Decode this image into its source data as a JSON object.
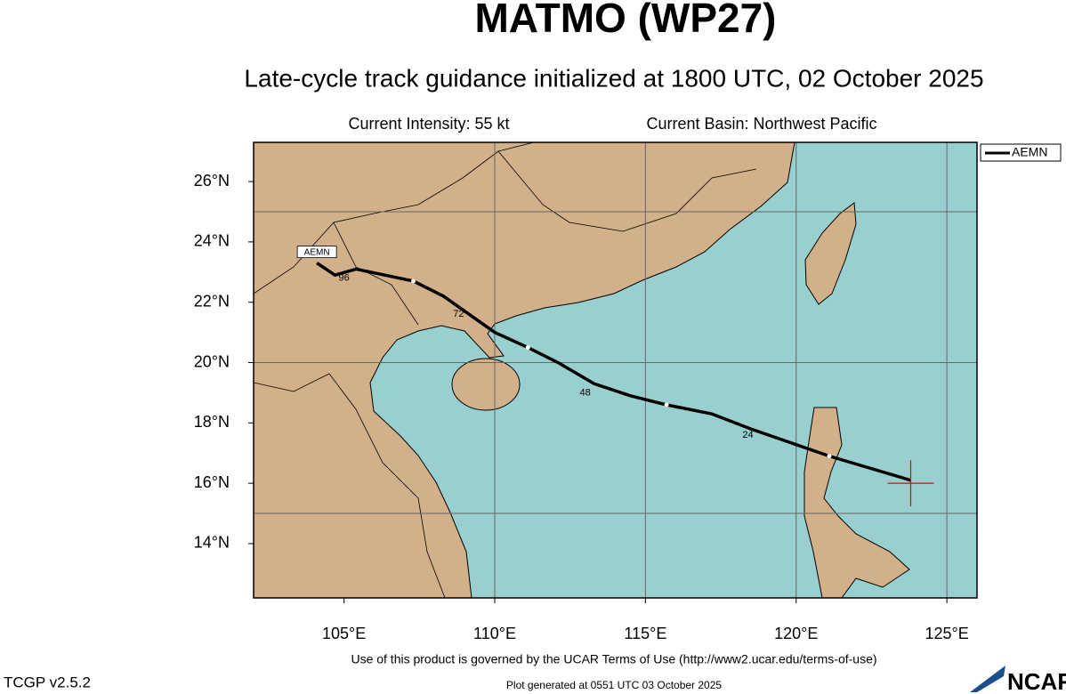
{
  "chart_data": {
    "type": "track-map",
    "title": "MATMO (WP27)",
    "subtitle": "Late-cycle track guidance initialized at 1800 UTC, 02 October 2025",
    "current_intensity": "Current Intensity: 55 kt",
    "current_basin": "Current Basin: Northwest Pacific",
    "xlim": [
      102,
      126
    ],
    "ylim": [
      12.2,
      27.3
    ],
    "xticks": [
      {
        "value": 105,
        "label": "105°E"
      },
      {
        "value": 110,
        "label": "110°E"
      },
      {
        "value": 115,
        "label": "115°E"
      },
      {
        "value": 120,
        "label": "120°E"
      },
      {
        "value": 125,
        "label": "125°E"
      }
    ],
    "yticks": [
      {
        "value": 14,
        "label": "14°N"
      },
      {
        "value": 16,
        "label": "16°N"
      },
      {
        "value": 18,
        "label": "18°N"
      },
      {
        "value": 20,
        "label": "20°N"
      },
      {
        "value": 22,
        "label": "22°N"
      },
      {
        "value": 24,
        "label": "24°N"
      },
      {
        "value": 26,
        "label": "26°N"
      }
    ],
    "grid_lon": [
      110,
      115,
      120,
      125
    ],
    "grid_lat": [
      15,
      20,
      25
    ],
    "series": [
      {
        "name": "AEMN",
        "color": "#000000",
        "x": [
          123.8,
          121.1,
          118.5,
          117.2,
          115.7,
          114.5,
          113.3,
          112.1,
          111.1,
          110.0,
          108.3,
          107.3,
          105.4,
          104.7,
          104.1
        ],
        "values": [
          16.1,
          16.9,
          17.8,
          18.3,
          18.6,
          18.9,
          19.3,
          20.0,
          20.5,
          21.0,
          22.2,
          22.7,
          23.1,
          22.9,
          23.3
        ]
      }
    ],
    "dots": {
      "x": [
        121.1,
        115.7,
        111.1,
        107.3
      ],
      "values": [
        16.9,
        18.6,
        20.5,
        22.7
      ]
    },
    "hour_labels": [
      {
        "label": "24",
        "lon": 118.4,
        "lat": 17.6
      },
      {
        "label": "48",
        "lon": 113.0,
        "lat": 19.0
      },
      {
        "label": "72",
        "lon": 108.8,
        "lat": 21.6
      },
      {
        "label": "96",
        "lon": 105.0,
        "lat": 22.8
      }
    ],
    "current_position": {
      "lon": 123.8,
      "lat": 16.0
    },
    "terms": "Use of this product is governed by the UCAR Terms of Use (http://www2.ucar.edu/terms-of-use)",
    "version": "TCGP v2.5.2",
    "generated": "Plot generated at 0551 UTC   03 October 2025",
    "logo": "NCAR"
  }
}
